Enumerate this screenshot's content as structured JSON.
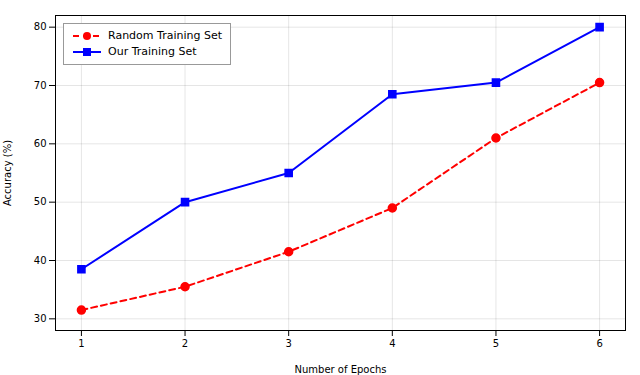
{
  "chart_data": {
    "type": "line",
    "x": [
      1,
      2,
      3,
      4,
      5,
      6
    ],
    "series": [
      {
        "name": "Random Training Set",
        "color": "#ff0000",
        "values": [
          31.5,
          35.5,
          41.5,
          49.0,
          61.0,
          70.5
        ],
        "marker": "circle",
        "line_style": "dashed"
      },
      {
        "name": "Our Training Set",
        "color": "#0000ff",
        "values": [
          38.5,
          50.0,
          55.0,
          68.5,
          70.5,
          80.0
        ],
        "marker": "square",
        "line_style": "solid"
      }
    ],
    "xlabel": "Number of Epochs",
    "ylabel": "Accuracy (%)",
    "xlim": [
      0.75,
      6.25
    ],
    "ylim": [
      28,
      82
    ],
    "xticks": [
      1,
      2,
      3,
      4,
      5,
      6
    ],
    "yticks": [
      30,
      40,
      50,
      60,
      70,
      80
    ],
    "grid": true,
    "legend": "upper left"
  }
}
